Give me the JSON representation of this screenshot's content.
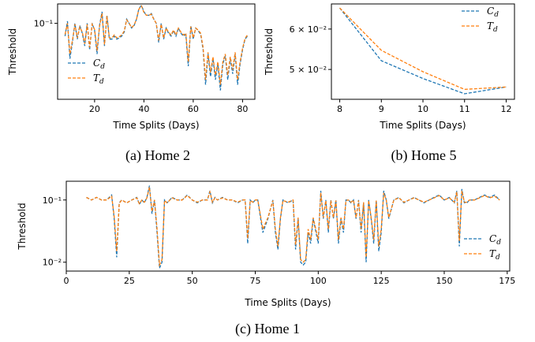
{
  "colors": {
    "c_d": "#1f77b4",
    "t_d": "#ff7f0e"
  },
  "chart_data": [
    {
      "id": "home2",
      "type": "line",
      "caption": "(a) Home 2",
      "xlabel": "Time Splits (Days)",
      "ylabel": "Threshold",
      "yscale": "log",
      "xlim": [
        5,
        85
      ],
      "ylim": [
        0.018,
        0.155
      ],
      "xticks": [
        20,
        40,
        60,
        80
      ],
      "xtick_labels": [
        "20",
        "40",
        "60",
        "80"
      ],
      "yticks": [
        0.1
      ],
      "ytick_labels": [
        "10⁻¹"
      ],
      "legend": "lower-left",
      "series": [
        {
          "name": "C_d",
          "label": "C",
          "sub": "d",
          "x": [
            8,
            9,
            10,
            11,
            12,
            13,
            14,
            15,
            16,
            17,
            18,
            19,
            20,
            21,
            22,
            23,
            24,
            25,
            26,
            27,
            28,
            29,
            30,
            31,
            32,
            33,
            34,
            35,
            36,
            37,
            38,
            39,
            40,
            41,
            42,
            43,
            44,
            45,
            46,
            47,
            48,
            49,
            50,
            51,
            52,
            53,
            54,
            55,
            56,
            57,
            58,
            59,
            60,
            61,
            62,
            63,
            64,
            65,
            66,
            67,
            68,
            69,
            70,
            71,
            72,
            73,
            74,
            75,
            76,
            77,
            78,
            79,
            80,
            81,
            82
          ],
          "values": [
            0.075,
            0.105,
            0.045,
            0.065,
            0.1,
            0.07,
            0.095,
            0.08,
            0.06,
            0.1,
            0.055,
            0.1,
            0.085,
            0.05,
            0.095,
            0.13,
            0.06,
            0.12,
            0.07,
            0.07,
            0.075,
            0.07,
            0.072,
            0.075,
            0.082,
            0.11,
            0.1,
            0.09,
            0.095,
            0.11,
            0.14,
            0.15,
            0.13,
            0.12,
            0.12,
            0.125,
            0.11,
            0.1,
            0.065,
            0.1,
            0.07,
            0.09,
            0.08,
            0.075,
            0.085,
            0.075,
            0.09,
            0.08,
            0.075,
            0.078,
            0.038,
            0.095,
            0.07,
            0.09,
            0.085,
            0.078,
            0.055,
            0.025,
            0.05,
            0.03,
            0.045,
            0.028,
            0.04,
            0.022,
            0.04,
            0.048,
            0.028,
            0.045,
            0.032,
            0.05,
            0.025,
            0.04,
            0.055,
            0.07,
            0.075
          ]
        },
        {
          "name": "T_d",
          "label": "T",
          "sub": "d",
          "x": [
            8,
            9,
            10,
            11,
            12,
            13,
            14,
            15,
            16,
            17,
            18,
            19,
            20,
            21,
            22,
            23,
            24,
            25,
            26,
            27,
            28,
            29,
            30,
            31,
            32,
            33,
            34,
            35,
            36,
            37,
            38,
            39,
            40,
            41,
            42,
            43,
            44,
            45,
            46,
            47,
            48,
            49,
            50,
            51,
            52,
            53,
            54,
            55,
            56,
            57,
            58,
            59,
            60,
            61,
            62,
            63,
            64,
            65,
            66,
            67,
            68,
            69,
            70,
            71,
            72,
            73,
            74,
            75,
            76,
            77,
            78,
            79,
            80,
            81,
            82
          ],
          "values": [
            0.078,
            0.1,
            0.05,
            0.068,
            0.098,
            0.072,
            0.092,
            0.082,
            0.063,
            0.098,
            0.058,
            0.098,
            0.087,
            0.054,
            0.093,
            0.125,
            0.062,
            0.118,
            0.072,
            0.072,
            0.077,
            0.072,
            0.074,
            0.077,
            0.084,
            0.108,
            0.1,
            0.091,
            0.096,
            0.11,
            0.138,
            0.148,
            0.128,
            0.12,
            0.12,
            0.123,
            0.11,
            0.1,
            0.068,
            0.098,
            0.072,
            0.09,
            0.082,
            0.077,
            0.086,
            0.077,
            0.09,
            0.082,
            0.077,
            0.08,
            0.042,
            0.093,
            0.072,
            0.09,
            0.086,
            0.08,
            0.058,
            0.028,
            0.052,
            0.033,
            0.047,
            0.031,
            0.042,
            0.025,
            0.042,
            0.05,
            0.031,
            0.047,
            0.035,
            0.052,
            0.028,
            0.042,
            0.057,
            0.071,
            0.077
          ]
        }
      ]
    },
    {
      "id": "home5",
      "type": "line",
      "caption": "(b) Home 5",
      "xlabel": "Time Splits (Days)",
      "ylabel": "Threshold",
      "yscale": "log",
      "xlim": [
        7.8,
        12.2
      ],
      "ylim": [
        0.0437,
        0.0672
      ],
      "xticks": [
        8,
        9,
        10,
        11,
        12
      ],
      "xtick_labels": [
        "8",
        "9",
        "10",
        "11",
        "12"
      ],
      "yticks": [
        0.05,
        0.06
      ],
      "ytick_labels": [
        "5 × 10⁻²",
        "6 × 10⁻²"
      ],
      "legend": "top-right",
      "series": [
        {
          "name": "C_d",
          "label": "C",
          "sub": "d",
          "x": [
            8,
            9,
            10,
            11,
            12
          ],
          "values": [
            0.066,
            0.052,
            0.048,
            0.0448,
            0.0462
          ]
        },
        {
          "name": "T_d",
          "label": "T",
          "sub": "d",
          "x": [
            8,
            9,
            10,
            11,
            12
          ],
          "values": [
            0.066,
            0.0545,
            0.0495,
            0.0457,
            0.0462
          ]
        }
      ]
    },
    {
      "id": "home1",
      "type": "line",
      "caption": "(c) Home 1",
      "xlabel": "Time Splits (Days)",
      "ylabel": "Threshold",
      "yscale": "log",
      "xlim": [
        0,
        176
      ],
      "ylim": [
        0.0072,
        0.2
      ],
      "xticks": [
        0,
        25,
        50,
        75,
        100,
        125,
        150,
        175
      ],
      "xtick_labels": [
        "0",
        "25",
        "50",
        "75",
        "100",
        "125",
        "150",
        "175"
      ],
      "yticks": [
        0.01,
        0.1
      ],
      "ytick_labels": [
        "10⁻²",
        "10⁻¹"
      ],
      "legend": "lower-right",
      "series": [
        {
          "name": "C_d",
          "label": "C",
          "sub": "d",
          "x": [
            8,
            10,
            12,
            14,
            16,
            18,
            19,
            20,
            21,
            22,
            24,
            26,
            28,
            29,
            30,
            31,
            32,
            33,
            34,
            35,
            36,
            37,
            38,
            39,
            40,
            42,
            44,
            46,
            48,
            50,
            52,
            54,
            56,
            57,
            58,
            59,
            60,
            62,
            64,
            66,
            68,
            70,
            71,
            72,
            73,
            74,
            75,
            76,
            78,
            80,
            82,
            83,
            84,
            85,
            86,
            88,
            90,
            91,
            92,
            93,
            94,
            95,
            96,
            97,
            98,
            100,
            101,
            102,
            103,
            104,
            105,
            106,
            107,
            108,
            109,
            110,
            111,
            112,
            113,
            114,
            115,
            116,
            117,
            118,
            119,
            120,
            121,
            122,
            123,
            124,
            125,
            126,
            127,
            128,
            130,
            132,
            134,
            136,
            138,
            140,
            142,
            144,
            146,
            148,
            150,
            152,
            154,
            155,
            156,
            157,
            158,
            159,
            160,
            162,
            164,
            166,
            168,
            170,
            172
          ],
          "values": [
            0.11,
            0.1,
            0.11,
            0.1,
            0.1,
            0.12,
            0.05,
            0.012,
            0.09,
            0.1,
            0.09,
            0.1,
            0.11,
            0.085,
            0.1,
            0.09,
            0.11,
            0.17,
            0.06,
            0.1,
            0.03,
            0.008,
            0.01,
            0.1,
            0.09,
            0.11,
            0.1,
            0.1,
            0.12,
            0.1,
            0.09,
            0.1,
            0.1,
            0.14,
            0.09,
            0.11,
            0.1,
            0.11,
            0.1,
            0.1,
            0.09,
            0.1,
            0.1,
            0.02,
            0.1,
            0.09,
            0.1,
            0.1,
            0.03,
            0.05,
            0.1,
            0.03,
            0.016,
            0.05,
            0.1,
            0.09,
            0.1,
            0.016,
            0.05,
            0.01,
            0.009,
            0.01,
            0.03,
            0.02,
            0.05,
            0.02,
            0.14,
            0.05,
            0.1,
            0.03,
            0.1,
            0.05,
            0.1,
            0.02,
            0.05,
            0.03,
            0.1,
            0.1,
            0.09,
            0.1,
            0.05,
            0.1,
            0.03,
            0.09,
            0.01,
            0.1,
            0.05,
            0.02,
            0.1,
            0.015,
            0.03,
            0.14,
            0.1,
            0.05,
            0.1,
            0.11,
            0.09,
            0.1,
            0.11,
            0.1,
            0.09,
            0.1,
            0.11,
            0.12,
            0.1,
            0.11,
            0.09,
            0.14,
            0.018,
            0.15,
            0.09,
            0.09,
            0.1,
            0.1,
            0.11,
            0.12,
            0.11,
            0.12,
            0.1
          ]
        },
        {
          "name": "T_d",
          "label": "T",
          "sub": "d",
          "x": [
            8,
            10,
            12,
            14,
            16,
            18,
            19,
            20,
            21,
            22,
            24,
            26,
            28,
            29,
            30,
            31,
            32,
            33,
            34,
            35,
            36,
            37,
            38,
            39,
            40,
            42,
            44,
            46,
            48,
            50,
            52,
            54,
            56,
            57,
            58,
            59,
            60,
            62,
            64,
            66,
            68,
            70,
            71,
            72,
            73,
            74,
            75,
            76,
            78,
            80,
            82,
            83,
            84,
            85,
            86,
            88,
            90,
            91,
            92,
            93,
            94,
            95,
            96,
            97,
            98,
            100,
            101,
            102,
            103,
            104,
            105,
            106,
            107,
            108,
            109,
            110,
            111,
            112,
            113,
            114,
            115,
            116,
            117,
            118,
            119,
            120,
            121,
            122,
            123,
            124,
            125,
            126,
            127,
            128,
            130,
            132,
            134,
            136,
            138,
            140,
            142,
            144,
            146,
            148,
            150,
            152,
            154,
            155,
            156,
            157,
            158,
            159,
            160,
            162,
            164,
            166,
            168,
            170,
            172
          ],
          "values": [
            0.11,
            0.1,
            0.11,
            0.1,
            0.1,
            0.115,
            0.055,
            0.015,
            0.088,
            0.1,
            0.09,
            0.1,
            0.108,
            0.087,
            0.1,
            0.092,
            0.108,
            0.16,
            0.065,
            0.1,
            0.035,
            0.009,
            0.011,
            0.098,
            0.09,
            0.108,
            0.1,
            0.1,
            0.118,
            0.1,
            0.092,
            0.1,
            0.1,
            0.135,
            0.092,
            0.108,
            0.1,
            0.108,
            0.1,
            0.1,
            0.092,
            0.1,
            0.1,
            0.024,
            0.098,
            0.092,
            0.1,
            0.1,
            0.034,
            0.052,
            0.098,
            0.034,
            0.018,
            0.052,
            0.098,
            0.092,
            0.1,
            0.019,
            0.052,
            0.011,
            0.01,
            0.011,
            0.034,
            0.023,
            0.052,
            0.023,
            0.13,
            0.052,
            0.098,
            0.034,
            0.098,
            0.052,
            0.098,
            0.023,
            0.052,
            0.034,
            0.098,
            0.1,
            0.092,
            0.1,
            0.052,
            0.098,
            0.034,
            0.092,
            0.012,
            0.098,
            0.052,
            0.023,
            0.098,
            0.018,
            0.034,
            0.13,
            0.1,
            0.052,
            0.1,
            0.108,
            0.092,
            0.1,
            0.108,
            0.1,
            0.092,
            0.1,
            0.108,
            0.118,
            0.1,
            0.108,
            0.092,
            0.135,
            0.022,
            0.14,
            0.092,
            0.092,
            0.1,
            0.1,
            0.108,
            0.118,
            0.108,
            0.115,
            0.1
          ]
        }
      ]
    }
  ]
}
